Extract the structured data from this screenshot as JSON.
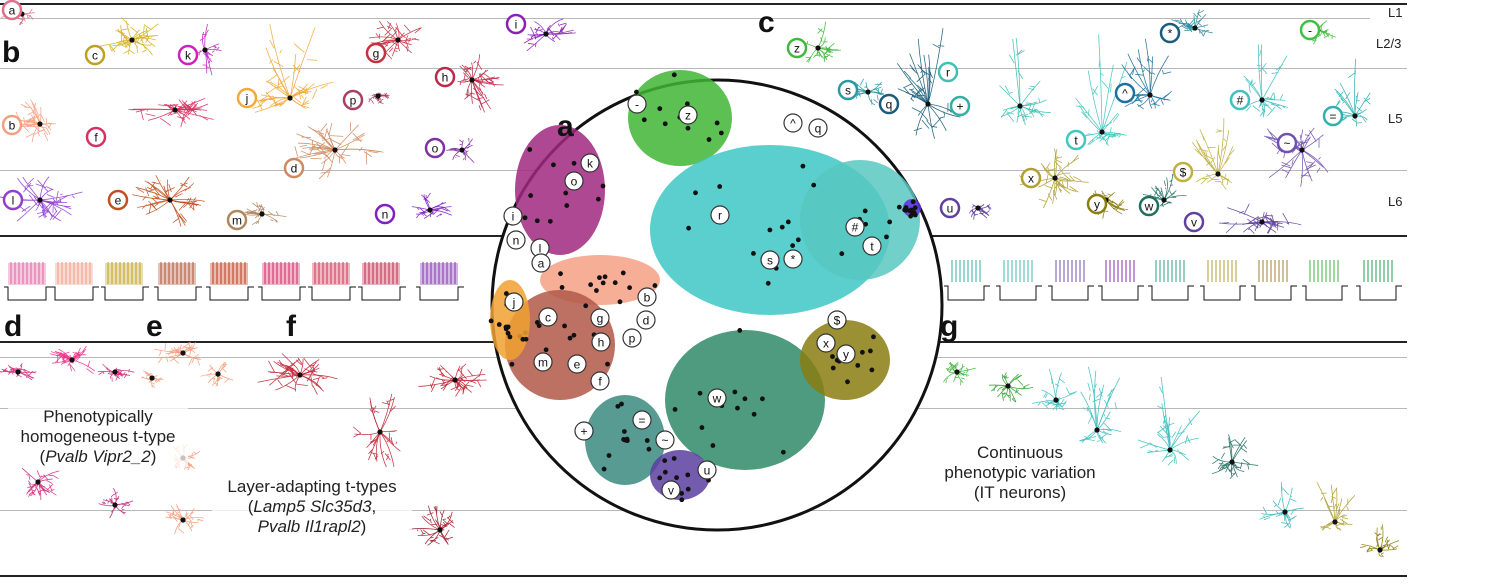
{
  "panel_letters": {
    "a": "a",
    "b": "b",
    "c": "c",
    "d": "d",
    "e": "e",
    "f": "f",
    "g": "g"
  },
  "layer_labels": {
    "l1": "L1",
    "l23": "L2/3",
    "l5": "L5",
    "l6": "L6"
  },
  "captions": {
    "d": {
      "line1": "Phenotypically",
      "line2": "homogeneous t-type",
      "line3_open": "(",
      "line3_italic": "Pvalb Vipr2_2",
      "line3_close": ")"
    },
    "f": {
      "line1": "Layer-adapting t-types",
      "line2_open": "(",
      "line2_italic": "Lamp5 Slc35d3",
      "line2_close": ",",
      "line3_italic": "Pvalb Il1rapl2",
      "line3_close": ")"
    },
    "g": {
      "line1": "Continuous",
      "line2": "phenotypic variation",
      "line3": "(IT neurons)"
    }
  },
  "neuron_markers_b": [
    "a",
    "b",
    "c",
    "d",
    "e",
    "f",
    "g",
    "h",
    "i",
    "j",
    "k",
    "l",
    "m",
    "n",
    "o",
    "p"
  ],
  "neuron_markers_c": [
    "z",
    "s",
    "q",
    "r",
    "+",
    "^",
    "-",
    "*",
    "#",
    "=",
    "~",
    "t",
    "x",
    "y",
    "w",
    "$",
    "v",
    "u"
  ],
  "tsne_markers": [
    "-",
    "z",
    "^",
    "q",
    "k",
    "o",
    "i",
    "n",
    "l",
    "r",
    "#",
    "*",
    "s",
    "t",
    "a",
    "b",
    "j",
    "c",
    "g",
    "h",
    "p",
    "m",
    "e",
    "f",
    "d",
    "$",
    "x",
    "y",
    "w",
    "+",
    "=",
    "~",
    "v",
    "u"
  ],
  "colors": {
    "sst_green": "#3fb534",
    "it_cyan": "#3ec7c4",
    "l6_teal": "#2f8a6a",
    "olive": "#8a7c10",
    "magenta": "#c42b8e",
    "orange": "#f0a030",
    "salmon": "#f4a085",
    "crimson": "#c0283f",
    "purple": "#8a3ec8",
    "navy_teal": "#1a5c7a",
    "axis": "#222222",
    "gridline": "#b8b8b8"
  }
}
